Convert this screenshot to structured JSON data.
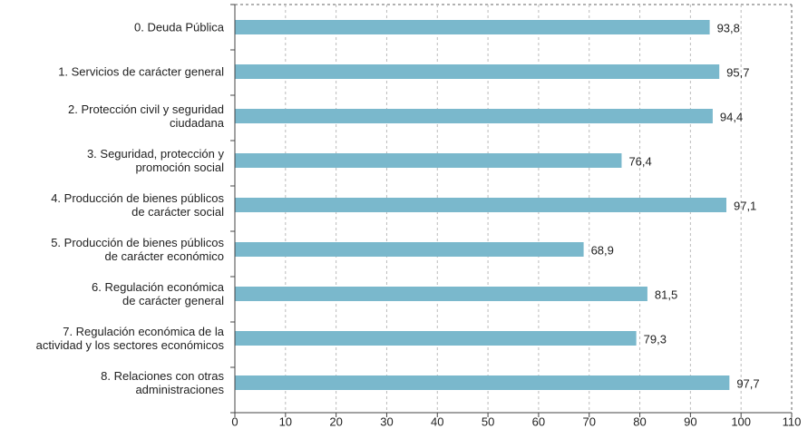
{
  "chart_data": {
    "type": "bar",
    "orientation": "horizontal",
    "categories": [
      "0. Deuda Pública",
      "1. Servicios de carácter general",
      "2. Protección civil y seguridad\nciudadana",
      "3. Seguridad, protección y\npromoción social",
      "4. Producción de bienes públicos\nde carácter social",
      "5. Producción de bienes públicos\nde carácter económico",
      "6. Regulación económica\nde carácter general",
      "7. Regulación económica de la\nactividad y los sectores económicos",
      "8. Relaciones con otras\nadministraciones"
    ],
    "values": [
      93.8,
      95.7,
      94.4,
      76.4,
      97.1,
      68.9,
      81.5,
      79.3,
      97.7
    ],
    "value_labels": [
      "93,8",
      "95,7",
      "94,4",
      "76,4",
      "97,1",
      "68,9",
      "81,5",
      "79,3",
      "97,7"
    ],
    "color": "#7ab8cc",
    "xlim": [
      0,
      110
    ],
    "xticks": [
      0,
      10,
      20,
      30,
      40,
      50,
      60,
      70,
      80,
      90,
      100,
      110
    ],
    "grid": true
  }
}
